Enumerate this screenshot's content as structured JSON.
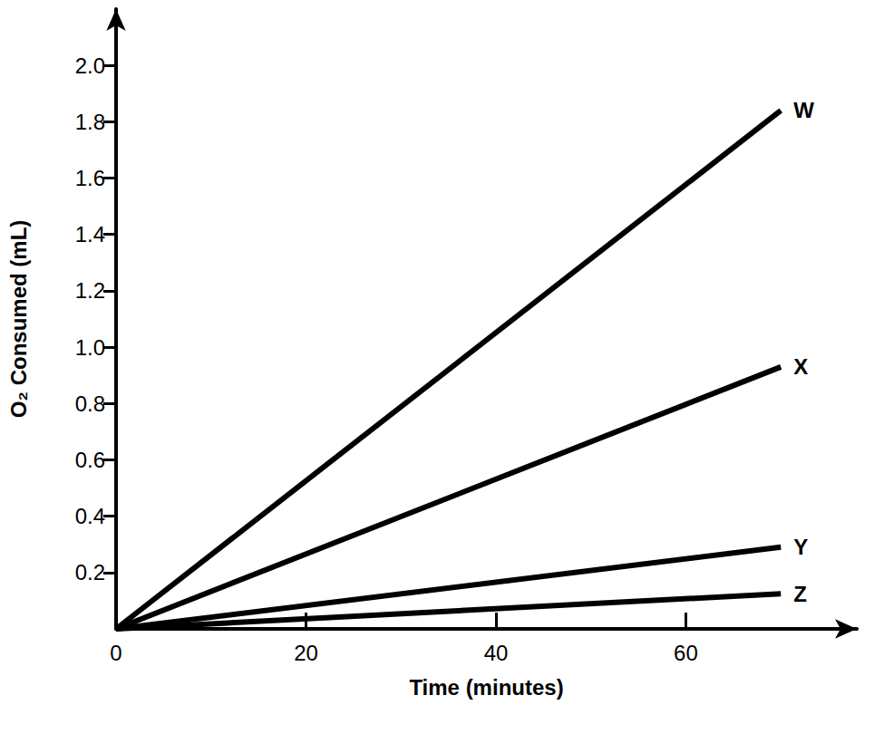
{
  "chart_data": {
    "type": "line",
    "x_label": "Time (minutes)",
    "y_label": "O₂ Consumed (mL)",
    "x": [
      0,
      70
    ],
    "series": [
      {
        "name": "W",
        "color": "#000000",
        "values": [
          0,
          1.84
        ]
      },
      {
        "name": "X",
        "color": "#000000",
        "values": [
          0,
          0.93
        ]
      },
      {
        "name": "Y",
        "color": "#000000",
        "values": [
          0,
          0.29
        ]
      },
      {
        "name": "Z",
        "color": "#000000",
        "values": [
          0,
          0.125
        ]
      }
    ],
    "xlim": [
      0,
      78
    ],
    "xticks": [
      0,
      20,
      40,
      60
    ],
    "ylim": [
      0,
      2.2
    ],
    "yticks": [
      0.2,
      0.4,
      0.6,
      0.8,
      {
        "value": 1,
        "label": "1.0"
      },
      1.2,
      1.4,
      1.6,
      1.8,
      {
        "value": 2,
        "label": "2.0"
      }
    ],
    "grid": false
  }
}
